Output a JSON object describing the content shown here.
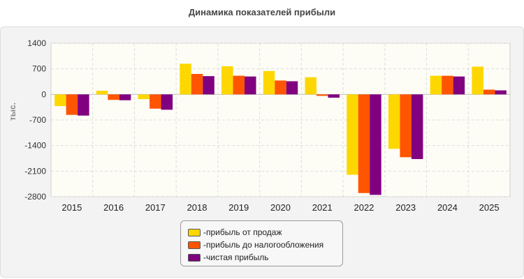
{
  "chart_data": {
    "type": "bar",
    "title": "Динамика показателей прибыли",
    "ylabel": "тыс.",
    "xlabel": "",
    "ylim": [
      -2800,
      1400
    ],
    "yticks": [
      1400,
      700,
      0,
      -700,
      -1400,
      -2100,
      -2800
    ],
    "grid": true,
    "legend_position": "bottom-center",
    "categories": [
      "2015",
      "2016",
      "2017",
      "2018",
      "2019",
      "2020",
      "2021",
      "2022",
      "2023",
      "2024",
      "2025"
    ],
    "series": [
      {
        "name": "прибыль от продаж",
        "color": "#ffd700",
        "values": [
          -320,
          100,
          -130,
          840,
          770,
          640,
          470,
          -2200,
          -1490,
          510,
          760
        ]
      },
      {
        "name": "прибыль до налогообложения",
        "color": "#ff5500",
        "values": [
          -560,
          -150,
          -390,
          560,
          510,
          380,
          -40,
          -2700,
          -1720,
          510,
          130
        ]
      },
      {
        "name": "чистая прибыль",
        "color": "#800080",
        "values": [
          -580,
          -160,
          -420,
          500,
          490,
          360,
          -90,
          -2750,
          -1770,
          490,
          110
        ]
      }
    ]
  }
}
